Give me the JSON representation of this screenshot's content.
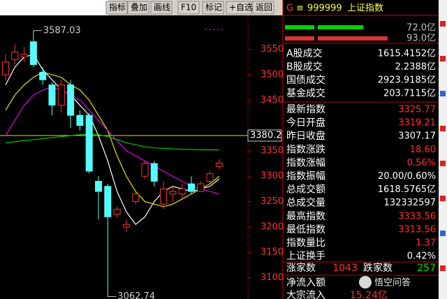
{
  "toolbar": [
    "指标",
    "叠加",
    "画线",
    "F10",
    "标记",
    "+自选",
    "返回"
  ],
  "chart_data": {
    "type": "candlestick",
    "ylim": [
      3058,
      3617
    ],
    "yticks": [
      3100,
      3150,
      3200,
      3250,
      3300,
      3350,
      3450,
      3500,
      3550
    ],
    "open": [
      3500,
      3530,
      3535,
      3565,
      3505,
      3480,
      3440,
      3480,
      3420,
      3420,
      3290,
      3280,
      3225,
      3200,
      3250,
      3300,
      3325,
      3245,
      3265,
      3265,
      3285,
      3270,
      3290,
      3319.21
    ],
    "high": [
      3540,
      3560,
      3555,
      3587.03,
      3515,
      3485,
      3490,
      3490,
      3430,
      3425,
      3300,
      3285,
      3240,
      3215,
      3270,
      3330,
      3330,
      3290,
      3280,
      3285,
      3300,
      3290,
      3310,
      3333.56
    ],
    "low": [
      3490,
      3520,
      3525,
      3515,
      3480,
      3420,
      3425,
      3395,
      3390,
      3305,
      3215,
      3062.74,
      3218,
      3190,
      3245,
      3295,
      3280,
      3235,
      3250,
      3255,
      3265,
      3270,
      3285,
      3313.56
    ],
    "close": [
      3525,
      3545,
      3540,
      3520,
      3490,
      3440,
      3480,
      3420,
      3400,
      3310,
      3270,
      3220,
      3235,
      3205,
      3265,
      3325,
      3290,
      3275,
      3270,
      3275,
      3270,
      3285,
      3305,
      3325.77
    ],
    "up_color": "#ff3232",
    "down_color": "#54fcfc",
    "lines": [
      {
        "color": "#ffffff",
        "values": [
          3480,
          3515,
          3535,
          3540,
          3510,
          3490,
          3470,
          3460,
          3440,
          3420,
          3380,
          3330,
          3270,
          3230,
          3205,
          3220,
          3250,
          3270,
          3280,
          3275,
          3270,
          3275,
          3280,
          3295
        ]
      },
      {
        "color": "#e6e600",
        "values": [
          3430,
          3460,
          3480,
          3495,
          3505,
          3500,
          3495,
          3480,
          3470,
          3450,
          3420,
          3390,
          3340,
          3300,
          3270,
          3250,
          3245,
          3240,
          3245,
          3255,
          3265,
          3275,
          3285,
          3300
        ]
      },
      {
        "color": "#e600e6",
        "values": [
          3380,
          3410,
          3440,
          3460,
          3470,
          3475,
          3470,
          3460,
          3450,
          3430,
          3410,
          3390,
          3370,
          3350,
          3340,
          3330,
          3320,
          3310,
          3300,
          3290,
          3280,
          3275,
          3270,
          3265
        ]
      },
      {
        "color": "#00c800",
        "values": [
          3366,
          3368,
          3370,
          3372,
          3374,
          3376,
          3378,
          3380,
          3382,
          3383,
          3382,
          3378,
          3372,
          3366,
          3362,
          3358,
          3356,
          3355,
          3354,
          3353,
          3353,
          3352,
          3352,
          3352
        ]
      }
    ],
    "cursor_price": 3380.2,
    "cursor_color": "#e6e600"
  },
  "panel": {
    "mark": "G",
    "code": "999999",
    "name": "上证指数",
    "bar_labels": [
      "72.0亿",
      "93.0亿"
    ],
    "rows": [
      {
        "label": "A股成交",
        "value": "1615.4152亿",
        "color": "#ffffff"
      },
      {
        "label": "B股成交",
        "value": "2.2388亿",
        "color": "#ffffff"
      },
      {
        "label": "国债成交",
        "value": "2923.9185亿",
        "color": "#ffffff"
      },
      {
        "label": "基金成交",
        "value": "203.7115亿",
        "color": "#ffffff"
      },
      {
        "label": "最新指数",
        "value": "3325.77",
        "color": "#ff3232"
      },
      {
        "label": "今日开盘",
        "value": "3319.21",
        "color": "#ff3232"
      },
      {
        "label": "昨日收盘",
        "value": "3307.17",
        "color": "#ffffff"
      },
      {
        "label": "指数涨跌",
        "value": "18.60",
        "color": "#ff3232"
      },
      {
        "label": "指数涨幅",
        "value": "0.56%",
        "color": "#ff3232"
      },
      {
        "label": "指数振幅",
        "value": "20.00/0.60%",
        "color": "#ffffff"
      },
      {
        "label": "总成交额",
        "value": "1618.5765亿",
        "color": "#ffffff"
      },
      {
        "label": "总成交量",
        "value": "132332597",
        "color": "#ffffff"
      },
      {
        "label": "最高指数",
        "value": "3333.56",
        "color": "#ff3232"
      },
      {
        "label": "最低指数",
        "value": "3313.56",
        "color": "#ff3232"
      },
      {
        "label": "指数量比",
        "value": "1.37",
        "color": "#ff3232"
      },
      {
        "label": "上证换手",
        "value": "0.42%",
        "color": "#ffffff"
      }
    ],
    "breadth": {
      "up_label": "涨家数",
      "up": "1043",
      "down_label": "跌家数",
      "down": "257"
    },
    "flow": [
      "净流入额",
      "大宗流入"
    ],
    "flow_value": "15.24亿",
    "watermark": "悟空问答"
  }
}
